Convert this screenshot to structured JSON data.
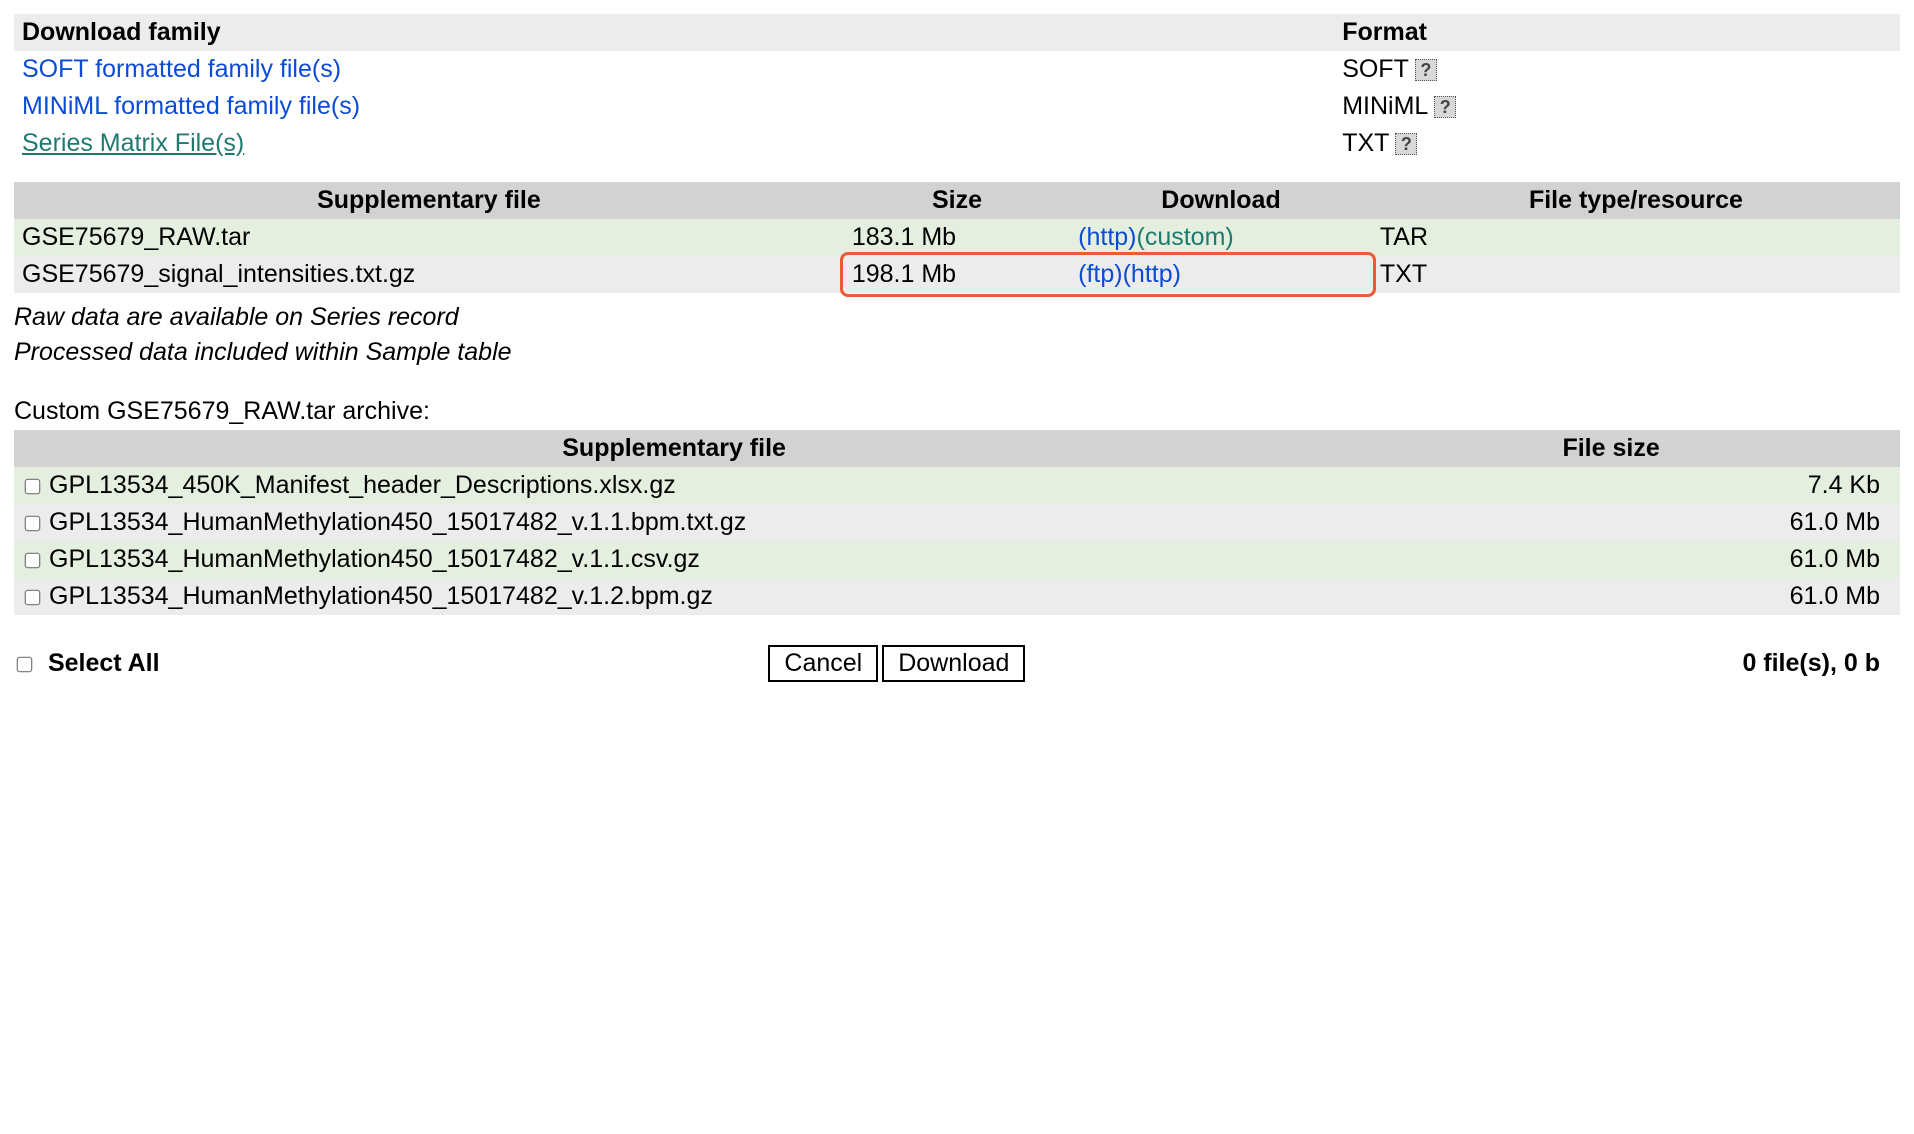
{
  "family": {
    "header_download": "Download family",
    "header_format": "Format",
    "rows": [
      {
        "label": "SOFT formatted family file(s)",
        "link_style": "blue",
        "format": "SOFT",
        "help": true
      },
      {
        "label": "MINiML formatted family file(s)",
        "link_style": "blue",
        "format": "MINiML",
        "help": true
      },
      {
        "label": "Series Matrix File(s)",
        "link_style": "teal",
        "format": "TXT",
        "help": true
      }
    ]
  },
  "supp": {
    "headers": {
      "file": "Supplementary file",
      "size": "Size",
      "download": "Download",
      "type": "File type/resource"
    },
    "rows": [
      {
        "file": "GSE75679_RAW.tar",
        "size": "183.1 Mb",
        "links": [
          {
            "text": "(http)",
            "style": "blue"
          },
          {
            "text": "(custom)",
            "style": "teal"
          }
        ],
        "type": "TAR",
        "green": true
      },
      {
        "file": "GSE75679_signal_intensities.txt.gz",
        "size": "198.1 Mb",
        "links": [
          {
            "text": "(ftp)",
            "style": "blue"
          },
          {
            "text": "(http)",
            "style": "blue"
          }
        ],
        "type": "TXT",
        "green": false,
        "highlight": true
      }
    ]
  },
  "notes": [
    "Raw data are available on Series record",
    "Processed data included within Sample table"
  ],
  "custom_label": "Custom GSE75679_RAW.tar archive:",
  "archive": {
    "headers": {
      "file": "Supplementary file",
      "size": "File size"
    },
    "rows": [
      {
        "file": "GPL13534_450K_Manifest_header_Descriptions.xlsx.gz",
        "size": "7.4 Kb",
        "green": true
      },
      {
        "file": "GPL13534_HumanMethylation450_15017482_v.1.1.bpm.txt.gz",
        "size": "61.0 Mb",
        "green": false
      },
      {
        "file": "GPL13534_HumanMethylation450_15017482_v.1.1.csv.gz",
        "size": "61.0 Mb",
        "green": true
      },
      {
        "file": "GPL13534_HumanMethylation450_15017482_v.1.2.bpm.gz",
        "size": "61.0 Mb",
        "green": false
      }
    ]
  },
  "footer": {
    "select_all": "Select All",
    "cancel": "Cancel",
    "download": "Download",
    "summary": "0 file(s), 0 b"
  },
  "highlight_box": {
    "color": "#ee5a33"
  }
}
